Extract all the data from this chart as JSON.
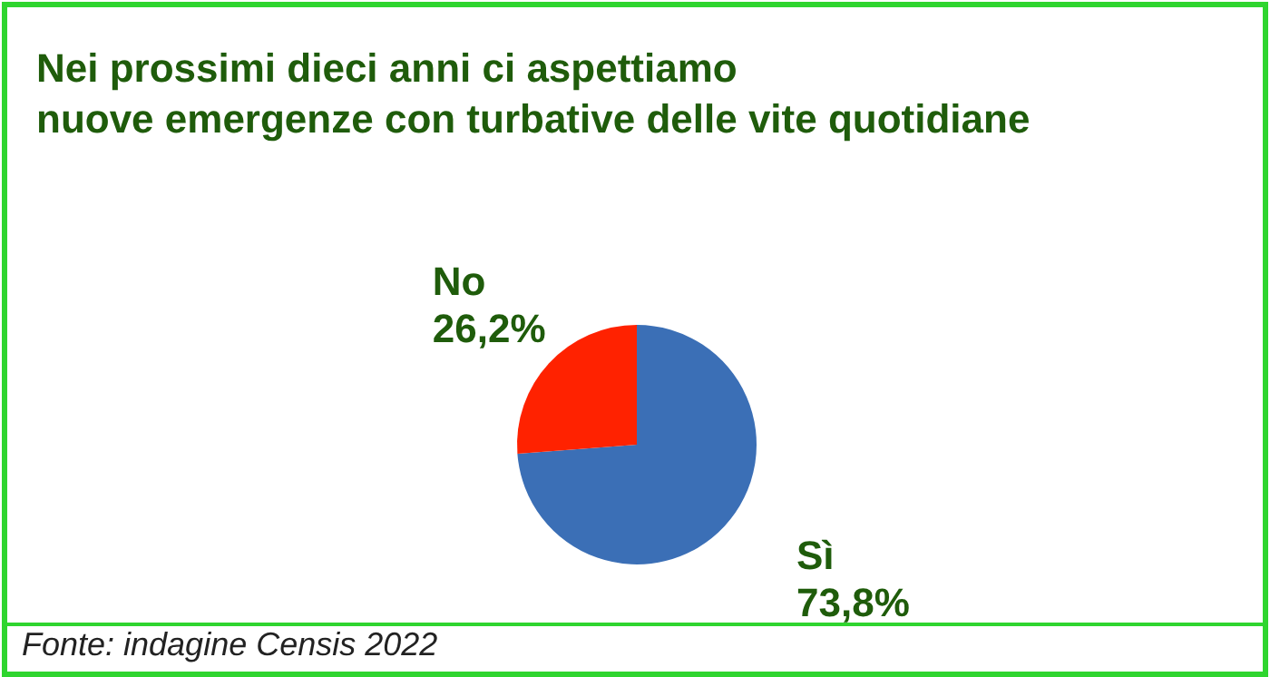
{
  "chart_data": {
    "type": "pie",
    "title": "Nei prossimi dieci anni ci aspettiamo\nnuove emergenze con turbative delle vite quotidiane",
    "categories": [
      "Sì",
      "No"
    ],
    "values": [
      73.8,
      26.2
    ],
    "colors": [
      "#3b6fb6",
      "#ff2200"
    ],
    "value_labels": [
      "73,8%",
      "26,2%"
    ],
    "legend": false,
    "annotations": [
      "Fonte: indagine Censis 2022"
    ]
  }
}
